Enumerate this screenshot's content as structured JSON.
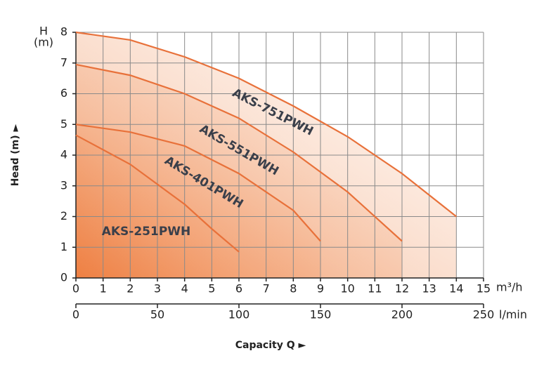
{
  "chart_data": {
    "type": "line",
    "y_unit_lines": [
      "H",
      "(m)"
    ],
    "y_label": "Head (m) ►",
    "x_label": "Capacity Q ►",
    "x_unit": "m³/h",
    "x2_unit": "l/min",
    "xlim": [
      0,
      15
    ],
    "xticks": [
      0,
      1,
      2,
      3,
      4,
      5,
      6,
      7,
      8,
      9,
      10,
      11,
      12,
      13,
      14,
      15
    ],
    "x2lim": [
      0,
      250
    ],
    "x2ticks": [
      0,
      50,
      100,
      150,
      200,
      250
    ],
    "ylim": [
      0,
      8
    ],
    "yticks": [
      0,
      1,
      2,
      3,
      4,
      5,
      6,
      7,
      8
    ],
    "grid": true,
    "color": "#e8713a",
    "series": [
      {
        "name": "AKS-751PWH",
        "x": [
          0,
          2,
          4,
          6,
          8,
          10,
          12,
          14
        ],
        "values": [
          8,
          7.75,
          7.2,
          6.5,
          5.6,
          4.6,
          3.4,
          2.0
        ]
      },
      {
        "name": "AKS-551PWH",
        "x": [
          0,
          2,
          4,
          6,
          8,
          10,
          12
        ],
        "values": [
          6.95,
          6.6,
          6.0,
          5.2,
          4.1,
          2.8,
          1.2
        ]
      },
      {
        "name": "AKS-401PWH",
        "x": [
          0,
          2,
          4,
          6,
          8,
          9
        ],
        "values": [
          5,
          4.75,
          4.3,
          3.4,
          2.2,
          1.2
        ]
      },
      {
        "name": "AKS-251PWH",
        "x": [
          0,
          2,
          4,
          5,
          6
        ],
        "values": [
          4.65,
          3.7,
          2.4,
          1.6,
          0.85
        ]
      }
    ]
  }
}
